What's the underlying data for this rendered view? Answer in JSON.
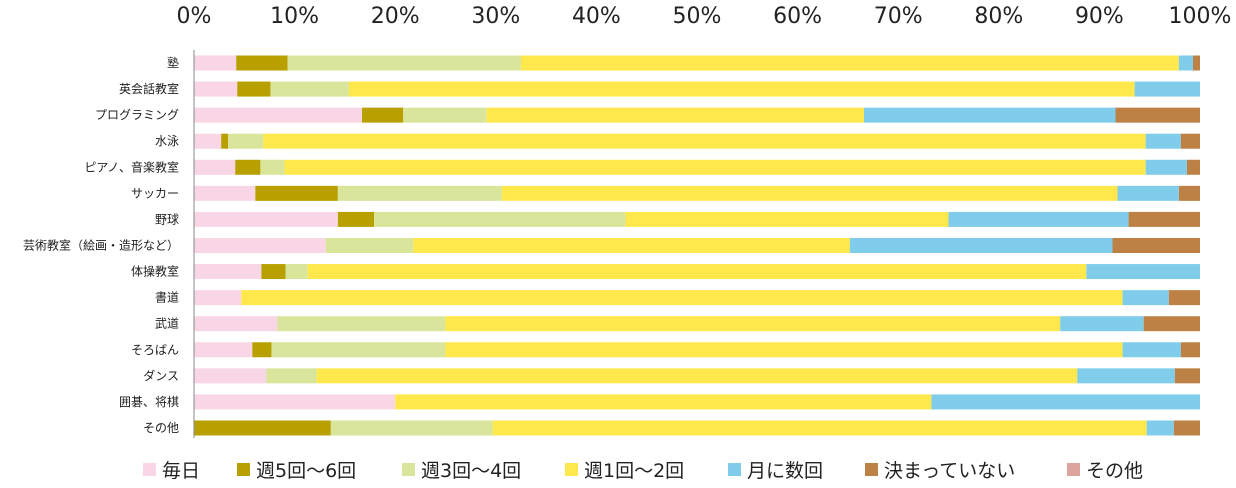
{
  "chart_data": {
    "type": "bar",
    "orientation": "horizontal",
    "stacked": "percent",
    "title": "",
    "xlabel": "",
    "ylabel": "",
    "xlim": [
      0,
      100
    ],
    "x_ticks": [
      "0%",
      "10%",
      "20%",
      "30%",
      "40%",
      "50%",
      "60%",
      "70%",
      "80%",
      "90%",
      "100%"
    ],
    "x_axis_position": "top",
    "grid": false,
    "legend_position": "bottom",
    "categories": [
      "塾",
      "英会話教室",
      "プログラミング",
      "水泳",
      "ピアノ、音楽教室",
      "サッカー",
      "野球",
      "芸術教室（絵画・造形など）",
      "体操教室",
      "書道",
      "武道",
      "そろばん",
      "ダンス",
      "囲碁、将棋",
      "その他"
    ],
    "series": [
      {
        "name": "毎日",
        "color": "#f8d6e6",
        "values": [
          4.2,
          4.3,
          16.7,
          2.7,
          4.1,
          6.1,
          14.3,
          13.1,
          6.7,
          4.7,
          8.3,
          5.8,
          7.2,
          20.0,
          0.0
        ]
      },
      {
        "name": "週5回～6回",
        "color": "#b8a000",
        "values": [
          5.1,
          3.3,
          4.1,
          0.7,
          2.5,
          8.2,
          3.6,
          0.0,
          2.4,
          0.0,
          0.0,
          1.9,
          0.0,
          0.0,
          13.6
        ]
      },
      {
        "name": "週3回～4回",
        "color": "#d9e59a",
        "values": [
          23.2,
          7.8,
          8.3,
          3.5,
          2.4,
          16.3,
          25.0,
          8.7,
          2.2,
          0.0,
          16.7,
          17.3,
          5.0,
          0.0,
          16.1
        ]
      },
      {
        "name": "週1回～2回",
        "color": "#ffe84c",
        "values": [
          65.4,
          78.1,
          37.5,
          87.7,
          85.6,
          61.2,
          32.1,
          43.4,
          77.4,
          87.6,
          61.1,
          67.3,
          75.6,
          53.3,
          65.0
        ]
      },
      {
        "name": "月に数回",
        "color": "#7fcdeb",
        "values": [
          1.4,
          6.5,
          25.0,
          3.5,
          4.1,
          6.1,
          17.9,
          26.1,
          11.3,
          4.6,
          8.3,
          5.8,
          9.7,
          26.7,
          2.7
        ]
      },
      {
        "name": "決まっていない",
        "color": "#bd8145",
        "values": [
          0.7,
          0.0,
          8.4,
          1.9,
          1.3,
          2.1,
          7.1,
          8.7,
          0.0,
          3.1,
          5.6,
          1.9,
          2.5,
          0.0,
          2.6
        ]
      },
      {
        "name": "その他",
        "color": "#dda39d",
        "values": [
          0,
          0,
          0,
          0,
          0,
          0,
          0,
          0,
          0,
          0,
          0,
          0,
          0,
          0,
          0
        ]
      }
    ]
  }
}
